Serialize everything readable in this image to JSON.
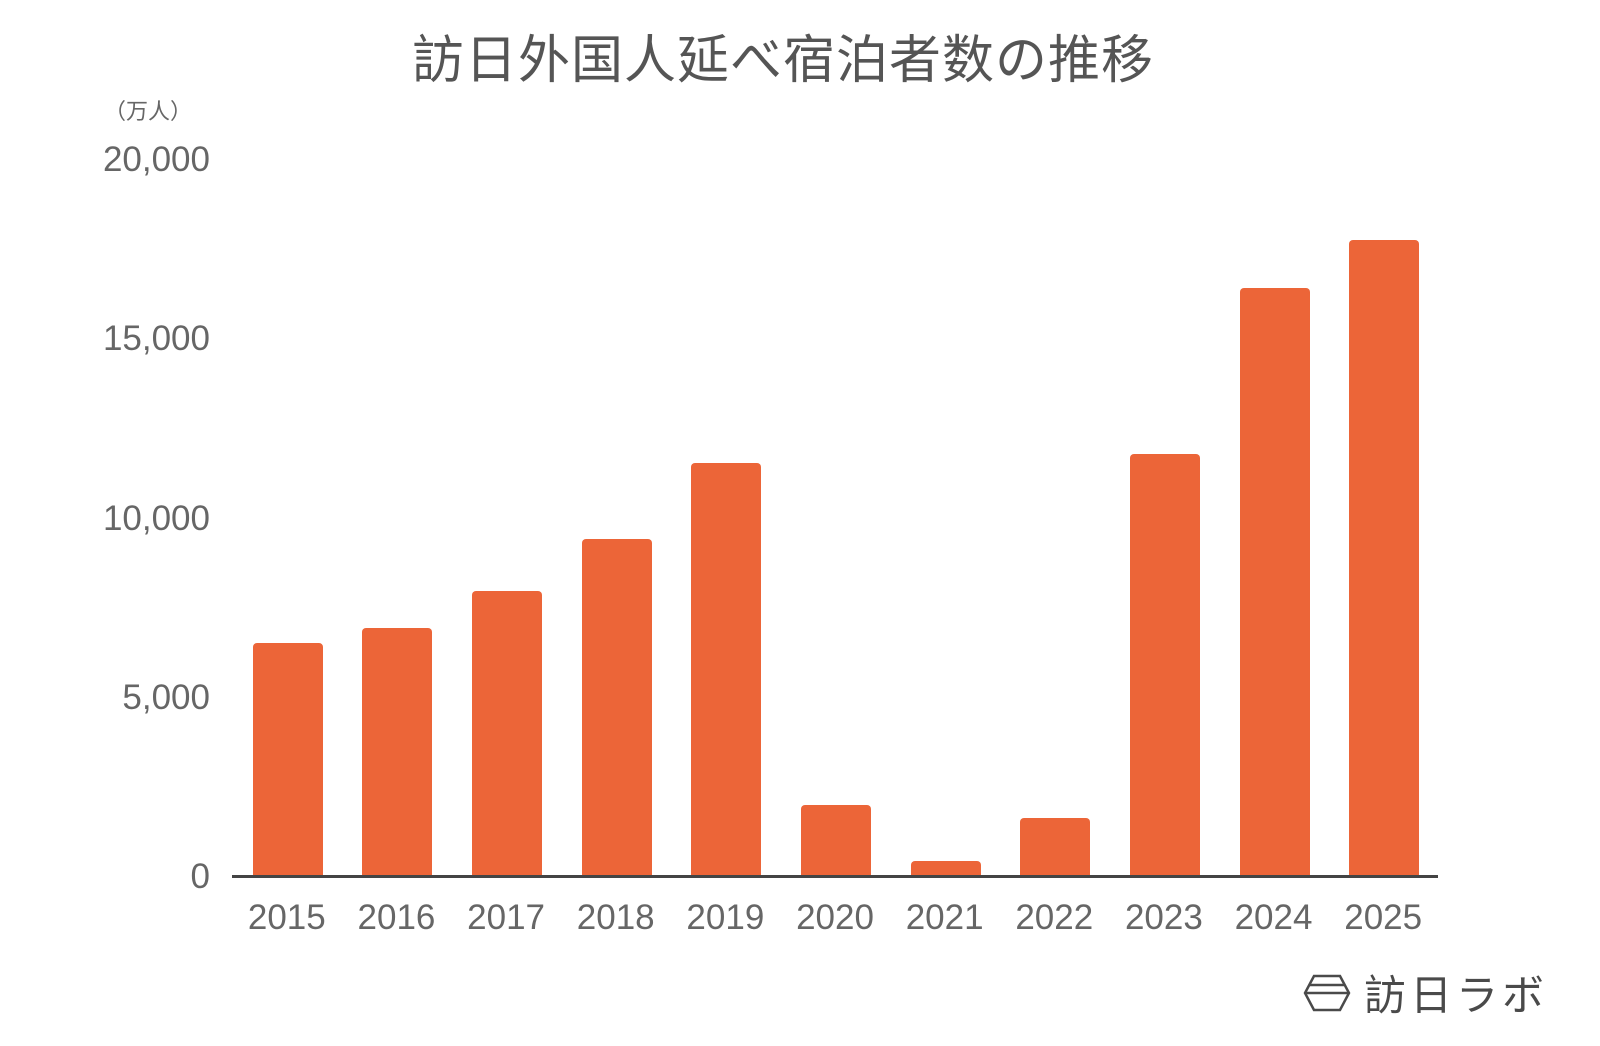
{
  "chart_data": {
    "type": "bar",
    "title": "訪日外国人延べ宿泊者数の推移",
    "unit_label": "（万人）",
    "xlabel": "",
    "ylabel": "（万人）",
    "ylim": [
      0,
      20000
    ],
    "yticks": [
      "20,000",
      "15,000",
      "10,000",
      "5,000",
      "0"
    ],
    "ytick_values": [
      20000,
      15000,
      10000,
      5000,
      0
    ],
    "grid": false,
    "legend": "none",
    "categories": [
      "2015",
      "2016",
      "2017",
      "2018",
      "2019",
      "2020",
      "2021",
      "2022",
      "2023",
      "2024",
      "2025"
    ],
    "values": [
      6530,
      6950,
      7980,
      9430,
      11550,
      2010,
      450,
      1650,
      11800,
      16430,
      17770
    ],
    "series": [
      {
        "name": "訪日外国人延べ宿泊者数",
        "color": "#ec6538",
        "values": [
          6530,
          6950,
          7980,
          9430,
          11550,
          2010,
          450,
          1650,
          11800,
          16430,
          17770
        ]
      }
    ]
  },
  "colors": {
    "bar": "#ec6538",
    "axis": "#444444",
    "text": "#666666"
  },
  "branding": {
    "logo_icon": "hexagon-logo-icon",
    "text": "訪日ラボ"
  }
}
